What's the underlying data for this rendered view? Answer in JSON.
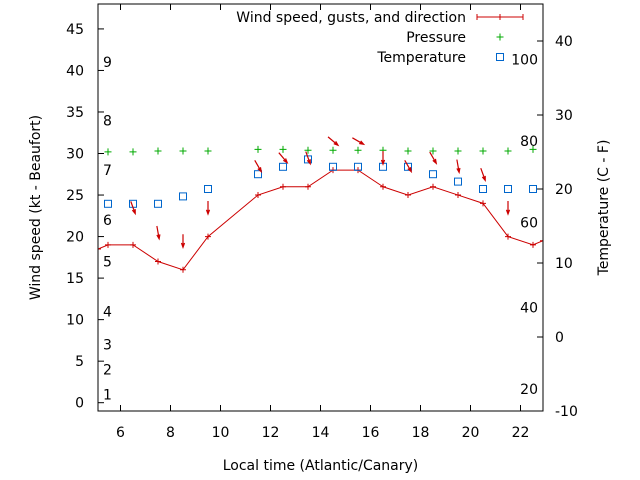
{
  "chart_data": {
    "type": "line",
    "xlabel": "Local time (Atlantic/Canary)",
    "ylabel": "Wind speed (kt - Beaufort)",
    "y2label": "Temperature (C - F)",
    "xlim": [
      5.1,
      22.9
    ],
    "ylim": [
      -1,
      48
    ],
    "y2lim": [
      -10,
      45
    ],
    "xticks": [
      6,
      8,
      10,
      12,
      14,
      16,
      18,
      20,
      22
    ],
    "yticks": [
      0,
      5,
      10,
      15,
      20,
      25,
      30,
      35,
      40,
      45
    ],
    "y2ticks": [
      -10,
      0,
      10,
      20,
      30,
      40
    ],
    "beaufort_labels": [
      {
        "text": "1",
        "y": 1
      },
      {
        "text": "2",
        "y": 4
      },
      {
        "text": "3",
        "y": 7
      },
      {
        "text": "4",
        "y": 11
      },
      {
        "text": "5",
        "y": 17
      },
      {
        "text": "6",
        "y": 22
      },
      {
        "text": "7",
        "y": 28
      },
      {
        "text": "8",
        "y": 34
      },
      {
        "text": "9",
        "y": 41
      }
    ],
    "fahrenheit_labels": [
      {
        "text": "20",
        "y2": -7
      },
      {
        "text": "40",
        "y2": 4
      },
      {
        "text": "60",
        "y2": 15.5
      },
      {
        "text": "80",
        "y2": 26.5
      },
      {
        "text": "100",
        "y2": 37.5
      }
    ],
    "legend": [
      {
        "label": "Wind speed, gusts, and direction",
        "color": "#cc0000",
        "marker": "line-plus"
      },
      {
        "label": "Pressure",
        "color": "#00aa00",
        "marker": "plus"
      },
      {
        "label": "Temperature",
        "color": "#0066cc",
        "marker": "square"
      }
    ],
    "series": [
      {
        "name": "Wind speed, gusts, and direction",
        "color": "#cc0000",
        "x": [
          5.1,
          5.5,
          6.5,
          7.5,
          8.5,
          9.5,
          11.5,
          12.5,
          13.5,
          14.5,
          15.5,
          16.5,
          17.5,
          18.5,
          19.5,
          20.5,
          21.5,
          22.5,
          22.9
        ],
        "y": [
          18.5,
          19,
          19,
          17,
          16,
          20,
          25,
          26,
          26,
          28,
          28,
          26,
          25,
          26,
          25,
          24,
          20,
          19,
          19.5
        ]
      },
      {
        "name": "Pressure",
        "color": "#00aa00",
        "x": [
          5.5,
          6.5,
          7.5,
          8.5,
          9.5,
          11.5,
          12.5,
          13.5,
          14.5,
          15.5,
          16.5,
          17.5,
          18.5,
          19.5,
          20.5,
          21.5,
          22.5
        ],
        "y": [
          30.2,
          30.2,
          30.3,
          30.3,
          30.3,
          30.5,
          30.5,
          30.4,
          30.4,
          30.4,
          30.4,
          30.3,
          30.3,
          30.3,
          30.3,
          30.3,
          30.5
        ]
      },
      {
        "name": "Temperature",
        "color": "#0066cc",
        "x": [
          5.5,
          6.5,
          7.5,
          8.5,
          9.5,
          11.5,
          12.5,
          13.5,
          14.5,
          15.5,
          16.5,
          17.5,
          18.5,
          19.5,
          20.5,
          21.5,
          22.5
        ],
        "y2": [
          18,
          18,
          18,
          19,
          20,
          22,
          23,
          24,
          23,
          23,
          23,
          23,
          22,
          21,
          20,
          20,
          20
        ]
      }
    ],
    "gust_arrows": {
      "color": "#cc0000",
      "x": [
        6.5,
        7.5,
        8.5,
        9.5,
        11.5,
        12.5,
        13.5,
        14.5,
        15.5,
        16.5,
        17.5,
        18.5,
        19.5,
        20.5,
        21.5
      ],
      "y": [
        23.5,
        20.5,
        19.5,
        23.5,
        28.5,
        29.5,
        29.5,
        31.5,
        31.5,
        29.5,
        28.5,
        29.5,
        28.5,
        27.5,
        23.5
      ],
      "direction_deg": [
        340,
        350,
        360,
        360,
        330,
        320,
        340,
        310,
        300,
        360,
        330,
        330,
        350,
        340,
        360
      ]
    }
  }
}
